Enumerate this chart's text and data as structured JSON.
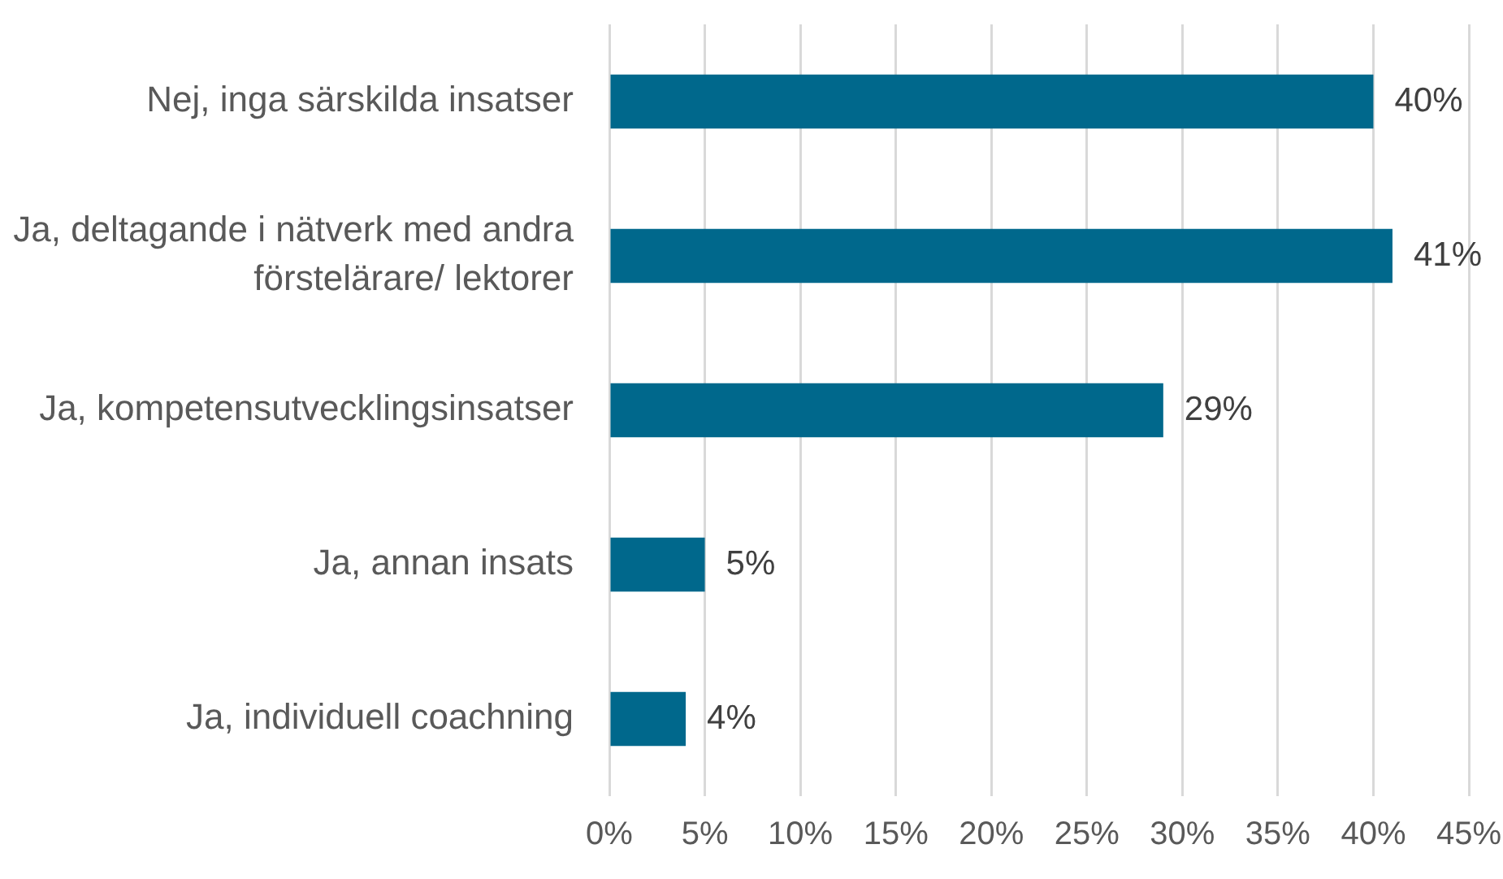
{
  "chart_data": {
    "type": "bar",
    "orientation": "horizontal",
    "categories": [
      "Nej, inga särskilda insatser",
      "Ja, deltagande i nätverk med andra förstelärare/ lektorer",
      "Ja, kompetensutvecklingsinsatser",
      "Ja, annan insats",
      "Ja, individuell coachning"
    ],
    "values": [
      40,
      41,
      29,
      5,
      4
    ],
    "color": "#00688c",
    "value_labels": [
      "40%",
      "41%",
      "29%",
      "5%",
      "4%"
    ],
    "xlim": [
      0,
      45
    ],
    "xticks": [
      {
        "value": 0,
        "label": "0%"
      },
      {
        "value": 5,
        "label": "5%"
      },
      {
        "value": 10,
        "label": "10%"
      },
      {
        "value": 15,
        "label": "15%"
      },
      {
        "value": 20,
        "label": "20%"
      },
      {
        "value": 25,
        "label": "25%"
      },
      {
        "value": 30,
        "label": "30%"
      },
      {
        "value": 35,
        "label": "35%"
      },
      {
        "value": 40,
        "label": "40%"
      },
      {
        "value": 45,
        "label": "45%"
      }
    ],
    "grid": "x"
  }
}
